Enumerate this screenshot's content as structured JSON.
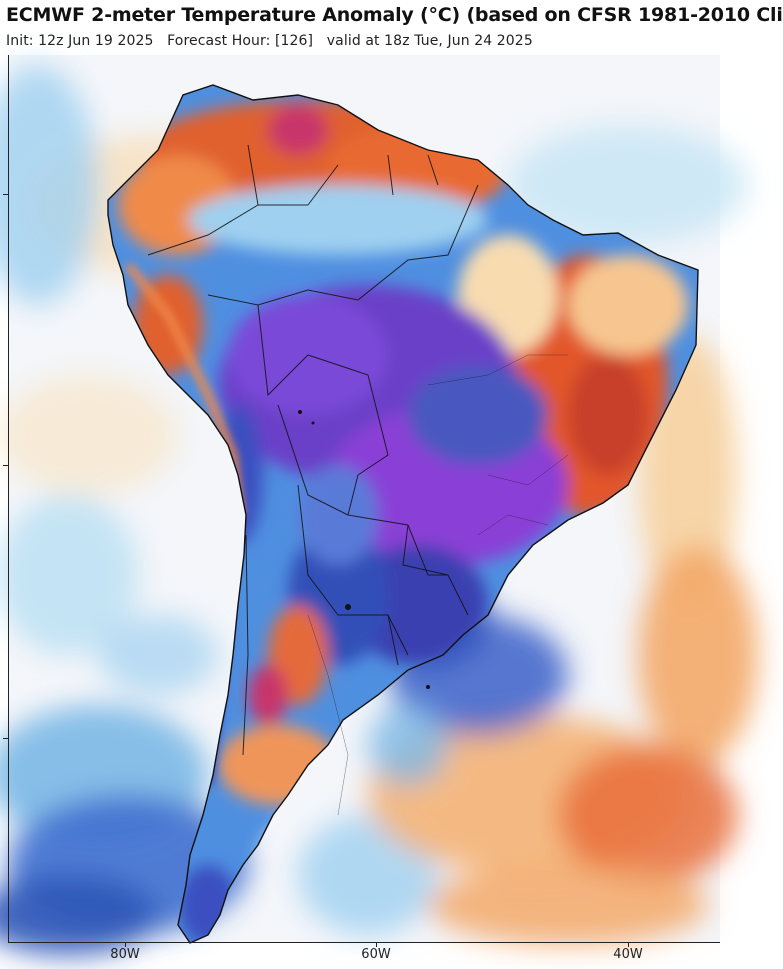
{
  "header": {
    "title": "ECMWF 2-meter Temperature Anomaly (°C) (based on CFSR 1981-2010 Cli",
    "subtitle_init": "Init: 12z Jun 19 2025",
    "subtitle_hour": "Forecast Hour: [126]",
    "subtitle_valid": "valid at 18z Tue, Jun 24 2025"
  },
  "map": {
    "region": "South America",
    "lon_labels": [
      "80W",
      "60W",
      "40W"
    ],
    "anomaly_colors": {
      "very_cold": "#8a3fd6",
      "cold": "#3a4fc0",
      "cool": "#4f8fe0",
      "cool_light": "#9fd0f0",
      "neutral": "#f4f6fa",
      "warm_light": "#f8dcb0",
      "warm": "#f09a5a",
      "hot": "#d84a2a",
      "very_hot": "#c8356a"
    }
  }
}
